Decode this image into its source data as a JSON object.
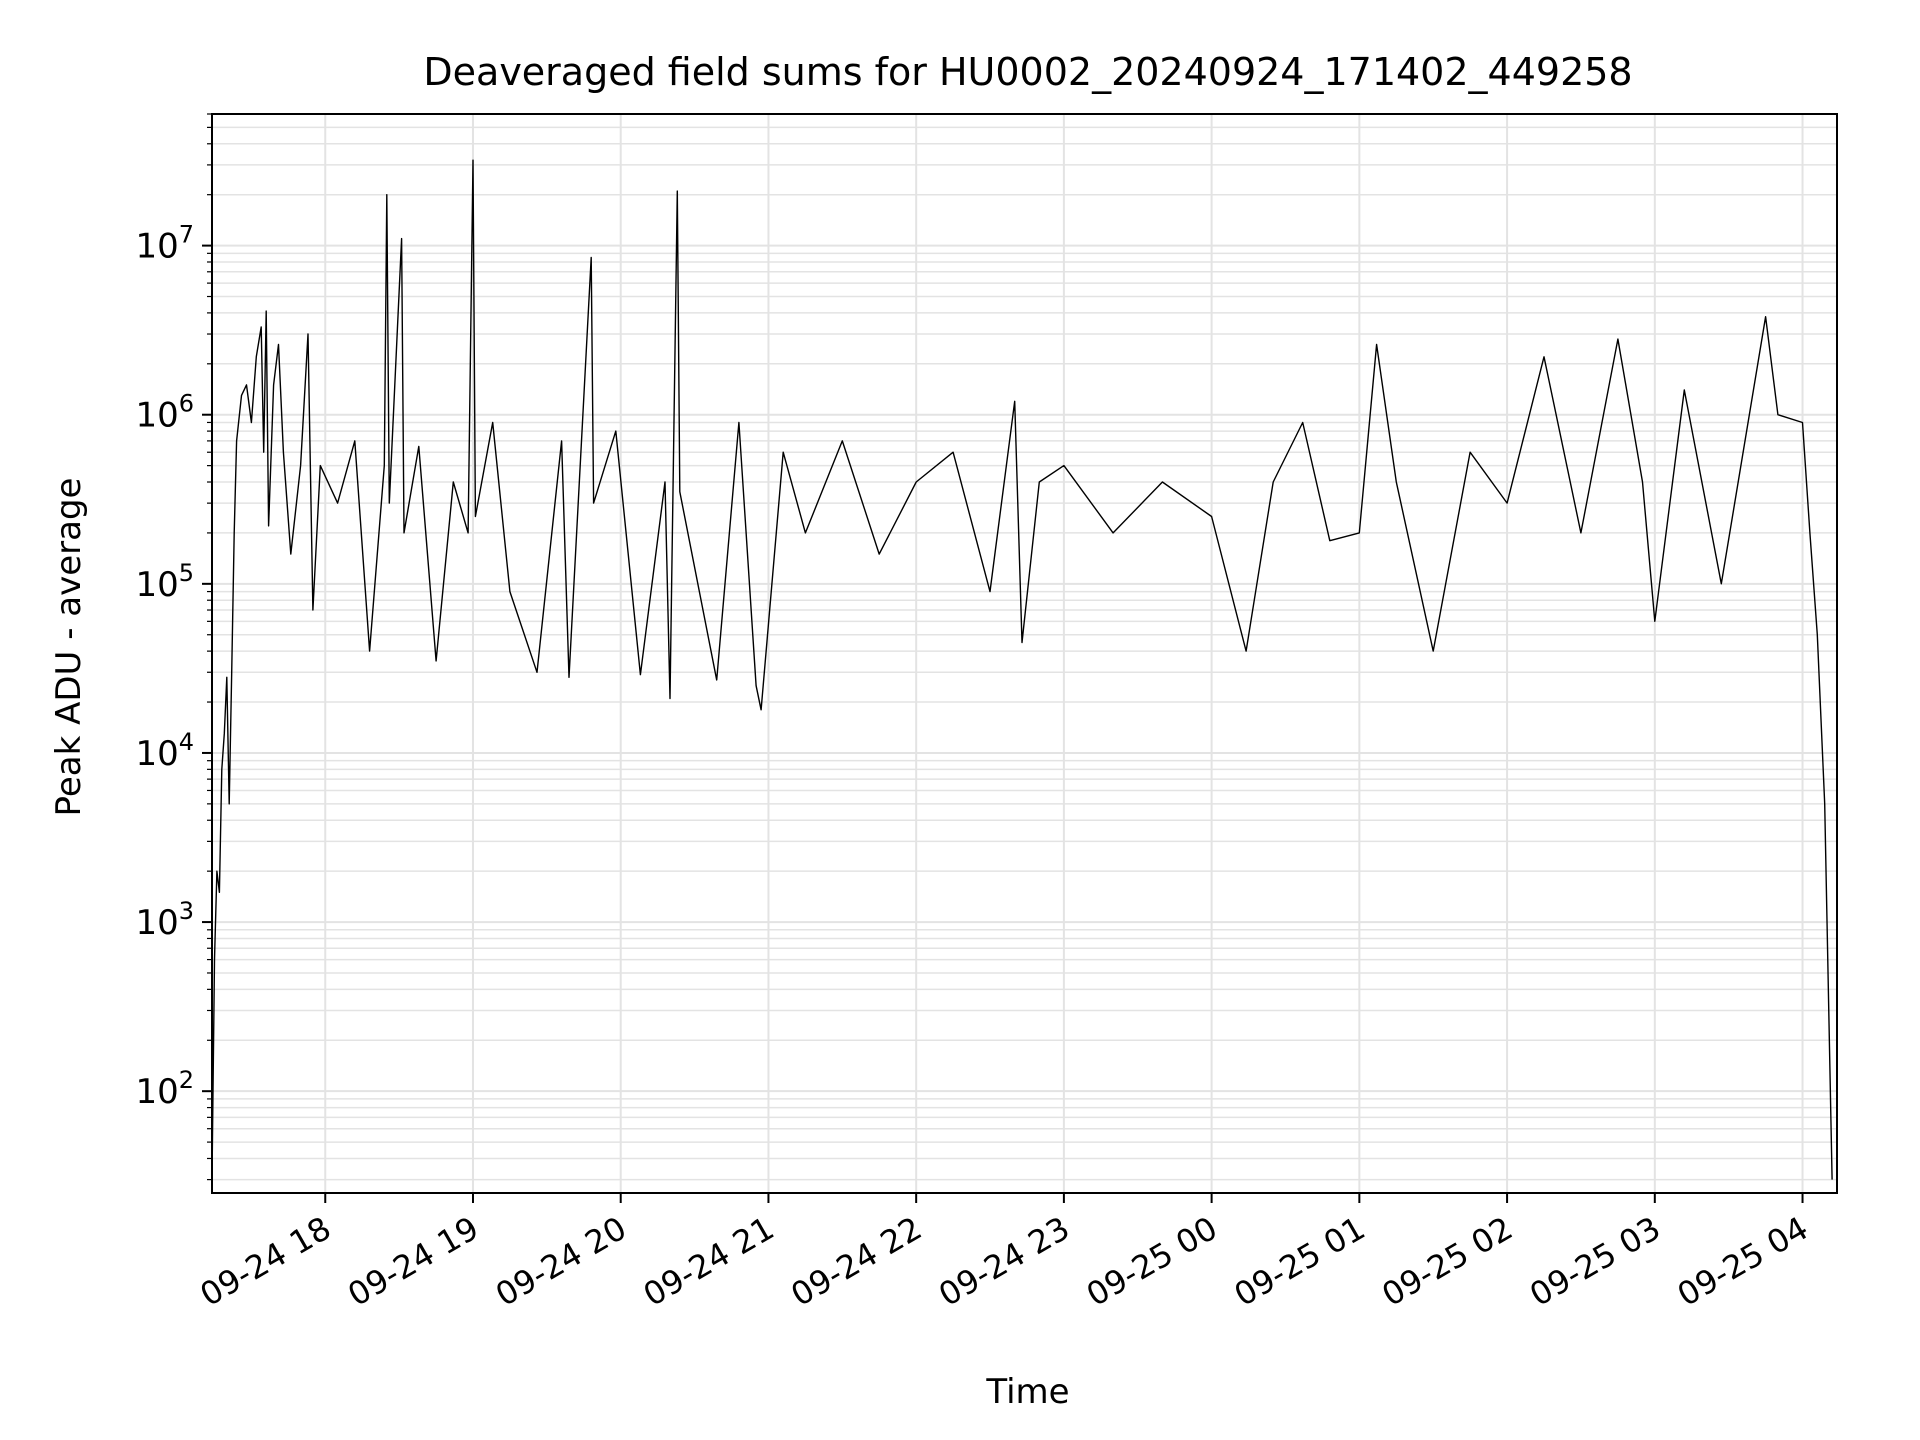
{
  "chart_data": {
    "type": "line",
    "title": "Deaveraged field sums for HU0002_20240924_171402_449258",
    "xlabel": "Time",
    "ylabel": "Peak ADU - average",
    "yscale": "log",
    "ylim": [
      25,
      60000000
    ],
    "xlim": [
      "2024-09-24T17:14",
      "2024-09-25T04:14"
    ],
    "grid": true,
    "legend": "none",
    "x_ticks": [
      {
        "t": "2024-09-24T18:00",
        "label": "09-24 18"
      },
      {
        "t": "2024-09-24T19:00",
        "label": "09-24 19"
      },
      {
        "t": "2024-09-24T20:00",
        "label": "09-24 20"
      },
      {
        "t": "2024-09-24T21:00",
        "label": "09-24 21"
      },
      {
        "t": "2024-09-24T22:00",
        "label": "09-24 22"
      },
      {
        "t": "2024-09-24T23:00",
        "label": "09-24 23"
      },
      {
        "t": "2024-09-25T00:00",
        "label": "09-25 00"
      },
      {
        "t": "2024-09-25T01:00",
        "label": "09-25 01"
      },
      {
        "t": "2024-09-25T02:00",
        "label": "09-25 02"
      },
      {
        "t": "2024-09-25T03:00",
        "label": "09-25 03"
      },
      {
        "t": "2024-09-25T04:00",
        "label": "09-25 04"
      }
    ],
    "y_ticks": [
      {
        "value": 100,
        "base": "10",
        "exp": "2"
      },
      {
        "value": 1000,
        "base": "10",
        "exp": "3"
      },
      {
        "value": 10000,
        "base": "10",
        "exp": "4"
      },
      {
        "value": 100000,
        "base": "10",
        "exp": "5"
      },
      {
        "value": 1000000,
        "base": "10",
        "exp": "6"
      },
      {
        "value": 10000000,
        "base": "10",
        "exp": "7"
      }
    ],
    "series": [
      {
        "color": "#000000",
        "points": [
          [
            "2024-09-24T17:14",
            30
          ],
          [
            "2024-09-24T17:15",
            600
          ],
          [
            "2024-09-24T17:16",
            2000
          ],
          [
            "2024-09-24T17:17",
            1500
          ],
          [
            "2024-09-24T17:18",
            8000
          ],
          [
            "2024-09-24T17:19",
            13000
          ],
          [
            "2024-09-24T17:20",
            28000
          ],
          [
            "2024-09-24T17:21",
            5000
          ],
          [
            "2024-09-24T17:22",
            30000
          ],
          [
            "2024-09-24T17:23",
            200000
          ],
          [
            "2024-09-24T17:24",
            700000
          ],
          [
            "2024-09-24T17:26",
            1300000
          ],
          [
            "2024-09-24T17:28",
            1500000
          ],
          [
            "2024-09-24T17:30",
            900000
          ],
          [
            "2024-09-24T17:32",
            2200000
          ],
          [
            "2024-09-24T17:34",
            3300000
          ],
          [
            "2024-09-24T17:35",
            600000
          ],
          [
            "2024-09-24T17:36",
            4100000
          ],
          [
            "2024-09-24T17:37",
            220000
          ],
          [
            "2024-09-24T17:39",
            1500000
          ],
          [
            "2024-09-24T17:41",
            2600000
          ],
          [
            "2024-09-24T17:43",
            600000
          ],
          [
            "2024-09-24T17:46",
            150000
          ],
          [
            "2024-09-24T17:50",
            500000
          ],
          [
            "2024-09-24T17:53",
            3000000
          ],
          [
            "2024-09-24T17:55",
            70000
          ],
          [
            "2024-09-24T17:58",
            500000
          ],
          [
            "2024-09-24T18:05",
            300000
          ],
          [
            "2024-09-24T18:12",
            700000
          ],
          [
            "2024-09-24T18:18",
            40000
          ],
          [
            "2024-09-24T18:24",
            500000
          ],
          [
            "2024-09-24T18:25",
            20000000
          ],
          [
            "2024-09-24T18:26",
            300000
          ],
          [
            "2024-09-24T18:31",
            11000000
          ],
          [
            "2024-09-24T18:32",
            200000
          ],
          [
            "2024-09-24T18:38",
            650000
          ],
          [
            "2024-09-24T18:45",
            35000
          ],
          [
            "2024-09-24T18:52",
            400000
          ],
          [
            "2024-09-24T18:58",
            200000
          ],
          [
            "2024-09-24T19:00",
            32000000
          ],
          [
            "2024-09-24T19:01",
            250000
          ],
          [
            "2024-09-24T19:08",
            900000
          ],
          [
            "2024-09-24T19:15",
            90000
          ],
          [
            "2024-09-24T19:26",
            30000
          ],
          [
            "2024-09-24T19:36",
            700000
          ],
          [
            "2024-09-24T19:39",
            28000
          ],
          [
            "2024-09-24T19:48",
            8500000
          ],
          [
            "2024-09-24T19:49",
            300000
          ],
          [
            "2024-09-24T19:58",
            800000
          ],
          [
            "2024-09-24T20:08",
            29000
          ],
          [
            "2024-09-24T20:18",
            400000
          ],
          [
            "2024-09-24T20:20",
            21000
          ],
          [
            "2024-09-24T20:23",
            21000000
          ],
          [
            "2024-09-24T20:24",
            350000
          ],
          [
            "2024-09-24T20:39",
            27000
          ],
          [
            "2024-09-24T20:48",
            900000
          ],
          [
            "2024-09-24T20:55",
            25000
          ],
          [
            "2024-09-24T20:57",
            18000
          ],
          [
            "2024-09-24T21:06",
            600000
          ],
          [
            "2024-09-24T21:15",
            200000
          ],
          [
            "2024-09-24T21:30",
            700000
          ],
          [
            "2024-09-24T21:45",
            150000
          ],
          [
            "2024-09-24T22:00",
            400000
          ],
          [
            "2024-09-24T22:15",
            600000
          ],
          [
            "2024-09-24T22:30",
            90000
          ],
          [
            "2024-09-24T22:40",
            1200000
          ],
          [
            "2024-09-24T22:43",
            45000
          ],
          [
            "2024-09-24T22:50",
            400000
          ],
          [
            "2024-09-24T23:00",
            500000
          ],
          [
            "2024-09-24T23:20",
            200000
          ],
          [
            "2024-09-24T23:40",
            400000
          ],
          [
            "2024-09-25T00:00",
            250000
          ],
          [
            "2024-09-25T00:14",
            40000
          ],
          [
            "2024-09-25T00:25",
            400000
          ],
          [
            "2024-09-25T00:37",
            900000
          ],
          [
            "2024-09-25T00:48",
            180000
          ],
          [
            "2024-09-25T01:00",
            200000
          ],
          [
            "2024-09-25T01:07",
            2600000
          ],
          [
            "2024-09-25T01:15",
            400000
          ],
          [
            "2024-09-25T01:30",
            40000
          ],
          [
            "2024-09-25T01:45",
            600000
          ],
          [
            "2024-09-25T02:00",
            300000
          ],
          [
            "2024-09-25T02:15",
            2200000
          ],
          [
            "2024-09-25T02:30",
            200000
          ],
          [
            "2024-09-25T02:45",
            2800000
          ],
          [
            "2024-09-25T02:55",
            400000
          ],
          [
            "2024-09-25T03:00",
            60000
          ],
          [
            "2024-09-25T03:12",
            1400000
          ],
          [
            "2024-09-25T03:27",
            100000
          ],
          [
            "2024-09-25T03:45",
            3800000
          ],
          [
            "2024-09-25T03:50",
            1000000
          ],
          [
            "2024-09-25T04:00",
            900000
          ],
          [
            "2024-09-25T04:03",
            200000
          ],
          [
            "2024-09-25T04:06",
            50000
          ],
          [
            "2024-09-25T04:09",
            5000
          ],
          [
            "2024-09-25T04:12",
            30
          ]
        ]
      }
    ]
  }
}
